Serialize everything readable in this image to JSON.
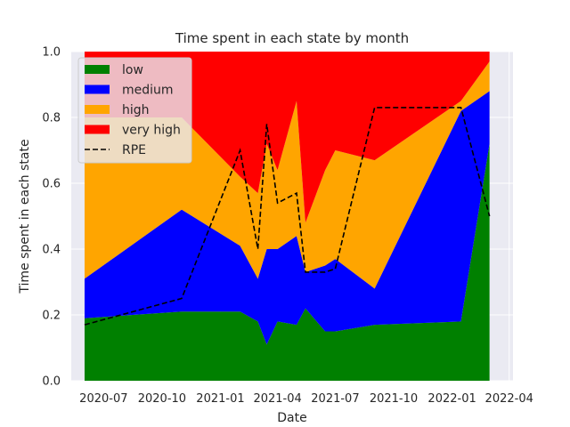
{
  "chart_data": {
    "type": "area",
    "stacked": true,
    "title": "Time spent in each state by month",
    "xlabel": "Date",
    "ylabel": "Time spent in each state",
    "ylim": [
      0.0,
      1.0
    ],
    "xlim": [
      "2020-05-11",
      "2022-04-07"
    ],
    "grid": true,
    "legend_position": "top-left",
    "x": [
      "2020-06-01",
      "2020-11-01",
      "2021-02-01",
      "2021-03-01",
      "2021-03-15",
      "2021-04-01",
      "2021-05-01",
      "2021-05-15",
      "2021-06-15",
      "2021-07-01",
      "2021-09-01",
      "2022-01-15",
      "2022-03-01"
    ],
    "series": [
      {
        "name": "low",
        "color": "#008000",
        "values": [
          0.19,
          0.21,
          0.21,
          0.18,
          0.11,
          0.18,
          0.17,
          0.22,
          0.15,
          0.15,
          0.17,
          0.18,
          0.72
        ]
      },
      {
        "name": "medium",
        "color": "#0000ff",
        "values": [
          0.12,
          0.31,
          0.2,
          0.13,
          0.29,
          0.22,
          0.27,
          0.11,
          0.2,
          0.22,
          0.11,
          0.64,
          0.16
        ]
      },
      {
        "name": "high",
        "color": "#ffa500",
        "values": [
          0.49,
          0.28,
          0.21,
          0.26,
          0.32,
          0.24,
          0.41,
          0.15,
          0.29,
          0.33,
          0.39,
          0.03,
          0.09
        ]
      },
      {
        "name": "very high",
        "color": "#ff0000",
        "values": [
          0.2,
          0.2,
          0.38,
          0.43,
          0.28,
          0.36,
          0.15,
          0.52,
          0.36,
          0.3,
          0.33,
          0.15,
          0.03
        ]
      }
    ],
    "line": {
      "name": "RPE",
      "color": "#000000",
      "style": "dashed",
      "x": [
        "2020-06-01",
        "2020-11-01",
        "2021-02-01",
        "2021-03-01",
        "2021-03-15",
        "2021-04-01",
        "2021-05-01",
        "2021-05-15",
        "2021-06-15",
        "2021-07-01",
        "2021-09-01",
        "2022-01-15",
        "2022-03-01"
      ],
      "values": [
        0.17,
        0.25,
        0.7,
        0.4,
        0.78,
        0.54,
        0.57,
        0.33,
        0.33,
        0.34,
        0.83,
        0.83,
        0.5
      ]
    },
    "x_ticks": [
      {
        "date": "2020-07-01",
        "label": "2020-07"
      },
      {
        "date": "2020-10-01",
        "label": "2020-10"
      },
      {
        "date": "2021-01-01",
        "label": "2021-01"
      },
      {
        "date": "2021-04-01",
        "label": "2021-04"
      },
      {
        "date": "2021-07-01",
        "label": "2021-07"
      },
      {
        "date": "2021-10-01",
        "label": "2021-10"
      },
      {
        "date": "2022-01-01",
        "label": "2022-01"
      },
      {
        "date": "2022-04-01",
        "label": "2022-04"
      }
    ],
    "y_ticks": [
      {
        "value": 0.0,
        "label": "0.0"
      },
      {
        "value": 0.2,
        "label": "0.2"
      },
      {
        "value": 0.4,
        "label": "0.4"
      },
      {
        "value": 0.6,
        "label": "0.6"
      },
      {
        "value": 0.8,
        "label": "0.8"
      },
      {
        "value": 1.0,
        "label": "1.0"
      }
    ]
  }
}
